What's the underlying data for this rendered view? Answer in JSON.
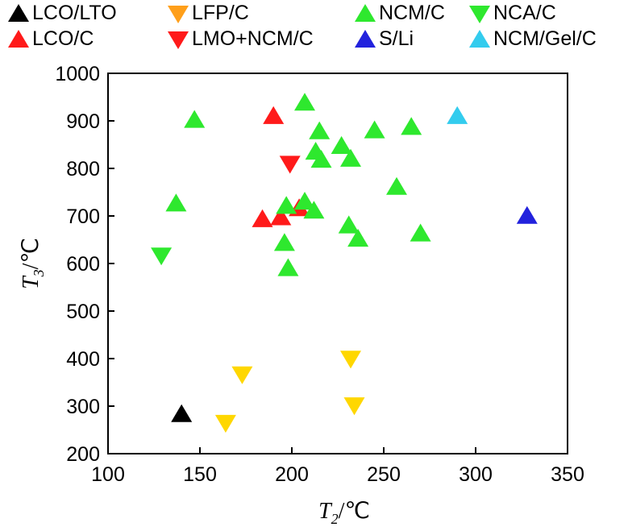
{
  "chart_data": {
    "type": "scatter",
    "xlabel": {
      "var": "T",
      "sub": "2",
      "unit": "/℃"
    },
    "ylabel": {
      "var": "T",
      "sub": "3",
      "unit": "/℃"
    },
    "xlim": [
      100,
      350
    ],
    "ylim": [
      200,
      1000
    ],
    "xticks": [
      "100",
      "150",
      "200",
      "250",
      "300",
      "350"
    ],
    "yticks": [
      "200",
      "300",
      "400",
      "500",
      "600",
      "700",
      "800",
      "900",
      "1000"
    ],
    "grid": false,
    "legend_position": "top",
    "series": [
      {
        "name": "LCO/LTO",
        "marker": "triangle-up",
        "color": "#000000",
        "points": [
          [
            140,
            283
          ]
        ]
      },
      {
        "name": "LCO/C",
        "marker": "triangle-up",
        "color": "#ff1a1a",
        "points": [
          [
            190,
            910
          ],
          [
            184,
            693
          ],
          [
            194,
            697
          ],
          [
            204,
            716
          ]
        ]
      },
      {
        "name": "LFP/C",
        "marker": "triangle-down",
        "color": "#ffd700",
        "points": [
          [
            173,
            367
          ],
          [
            164,
            265
          ],
          [
            232,
            400
          ],
          [
            234,
            302
          ]
        ]
      },
      {
        "name": "LMO+NCM/C",
        "marker": "triangle-down",
        "color": "#ff1a1a",
        "points": [
          [
            199,
            810
          ]
        ]
      },
      {
        "name": "NCM/C",
        "marker": "triangle-up",
        "color": "#2ee82e",
        "points": [
          [
            147,
            902
          ],
          [
            207,
            938
          ],
          [
            215,
            878
          ],
          [
            227,
            847
          ],
          [
            245,
            880
          ],
          [
            265,
            887
          ],
          [
            213,
            835
          ],
          [
            216,
            818
          ],
          [
            232,
            820
          ],
          [
            137,
            726
          ],
          [
            197,
            721
          ],
          [
            207,
            730
          ],
          [
            212,
            711
          ],
          [
            257,
            761
          ],
          [
            231,
            680
          ],
          [
            236,
            652
          ],
          [
            270,
            663
          ],
          [
            196,
            643
          ],
          [
            198,
            590
          ]
        ]
      },
      {
        "name": "NCA/C",
        "marker": "triangle-down",
        "color": "#2ee82e",
        "points": [
          [
            129,
            617
          ]
        ]
      },
      {
        "name": "S/Li",
        "marker": "triangle-up",
        "color": "#2222dd",
        "points": [
          [
            328,
            700
          ]
        ]
      },
      {
        "name": "NCM/Gel/C",
        "marker": "triangle-up",
        "color": "#33ccee",
        "points": [
          [
            290,
            910
          ]
        ]
      }
    ]
  }
}
